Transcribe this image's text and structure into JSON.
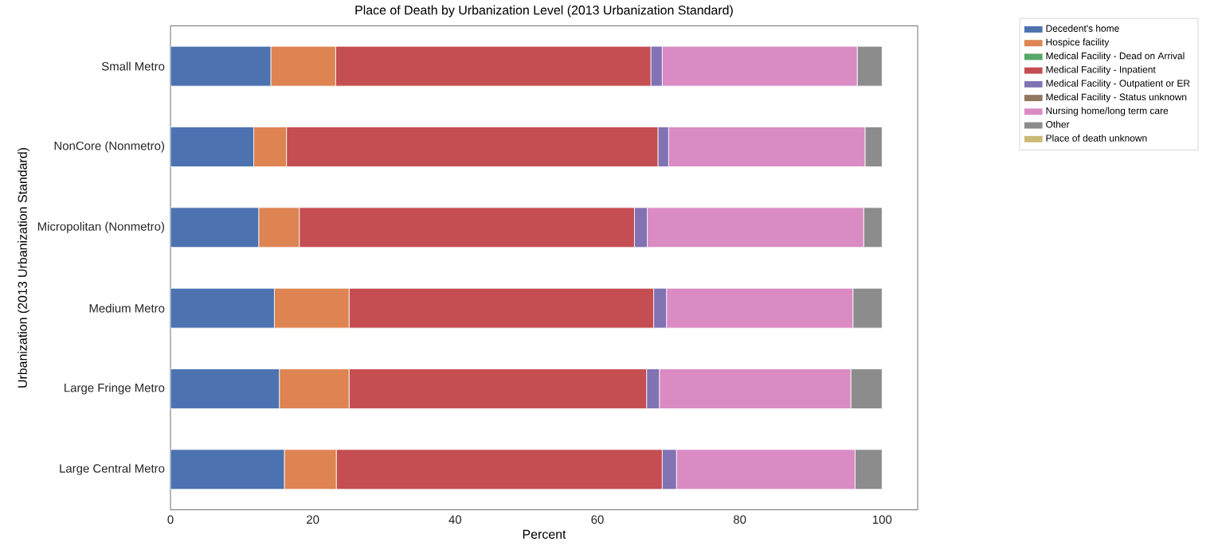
{
  "chart_data": {
    "type": "bar",
    "orientation": "horizontal",
    "stacked": true,
    "title": "Place of Death by Urbanization Level (2013 Urbanization Standard)",
    "xlabel": "Percent",
    "ylabel": "Urbanization (2013 Urbanization Standard)",
    "categories": [
      "Small Metro",
      "NonCore (Nonmetro)",
      "Micropolitan (Nonmetro)",
      "Medium Metro",
      "Large Fringe Metro",
      "Large Central Metro"
    ],
    "series": [
      {
        "name": "Decedent's home",
        "color": "#4c72b0",
        "values": [
          14.1,
          11.7,
          12.4,
          14.6,
          15.3,
          16.0
        ]
      },
      {
        "name": "Hospice facility",
        "color": "#dd8452",
        "values": [
          9.1,
          4.6,
          5.7,
          10.5,
          9.8,
          7.3
        ]
      },
      {
        "name": "Medical Facility - Dead on Arrival",
        "color": "#55a868",
        "values": [
          0,
          0,
          0,
          0,
          0,
          0
        ]
      },
      {
        "name": "Medical Facility - Inpatient",
        "color": "#c44e52",
        "values": [
          44.3,
          52.2,
          47.1,
          42.8,
          41.8,
          45.8
        ]
      },
      {
        "name": "Medical Facility - Outpatient or ER",
        "color": "#8172b3",
        "values": [
          1.6,
          1.5,
          1.8,
          1.8,
          1.8,
          2.0
        ]
      },
      {
        "name": "Medical Facility - Status unknown",
        "color": "#937860",
        "values": [
          0,
          0,
          0,
          0,
          0,
          0
        ]
      },
      {
        "name": "Nursing home/long term care",
        "color": "#da8bc3",
        "values": [
          27.4,
          27.6,
          30.4,
          26.2,
          26.9,
          25.1
        ]
      },
      {
        "name": "Other",
        "color": "#8c8c8c",
        "values": [
          3.5,
          2.4,
          2.6,
          4.1,
          4.4,
          3.8
        ]
      },
      {
        "name": "Place of death unknown",
        "color": "#ccb974",
        "values": [
          0,
          0,
          0,
          0,
          0,
          0
        ]
      }
    ],
    "xlim": [
      0,
      105
    ],
    "xticks": [
      0,
      20,
      40,
      60,
      80,
      100
    ],
    "grid": false,
    "legend": "top right"
  }
}
